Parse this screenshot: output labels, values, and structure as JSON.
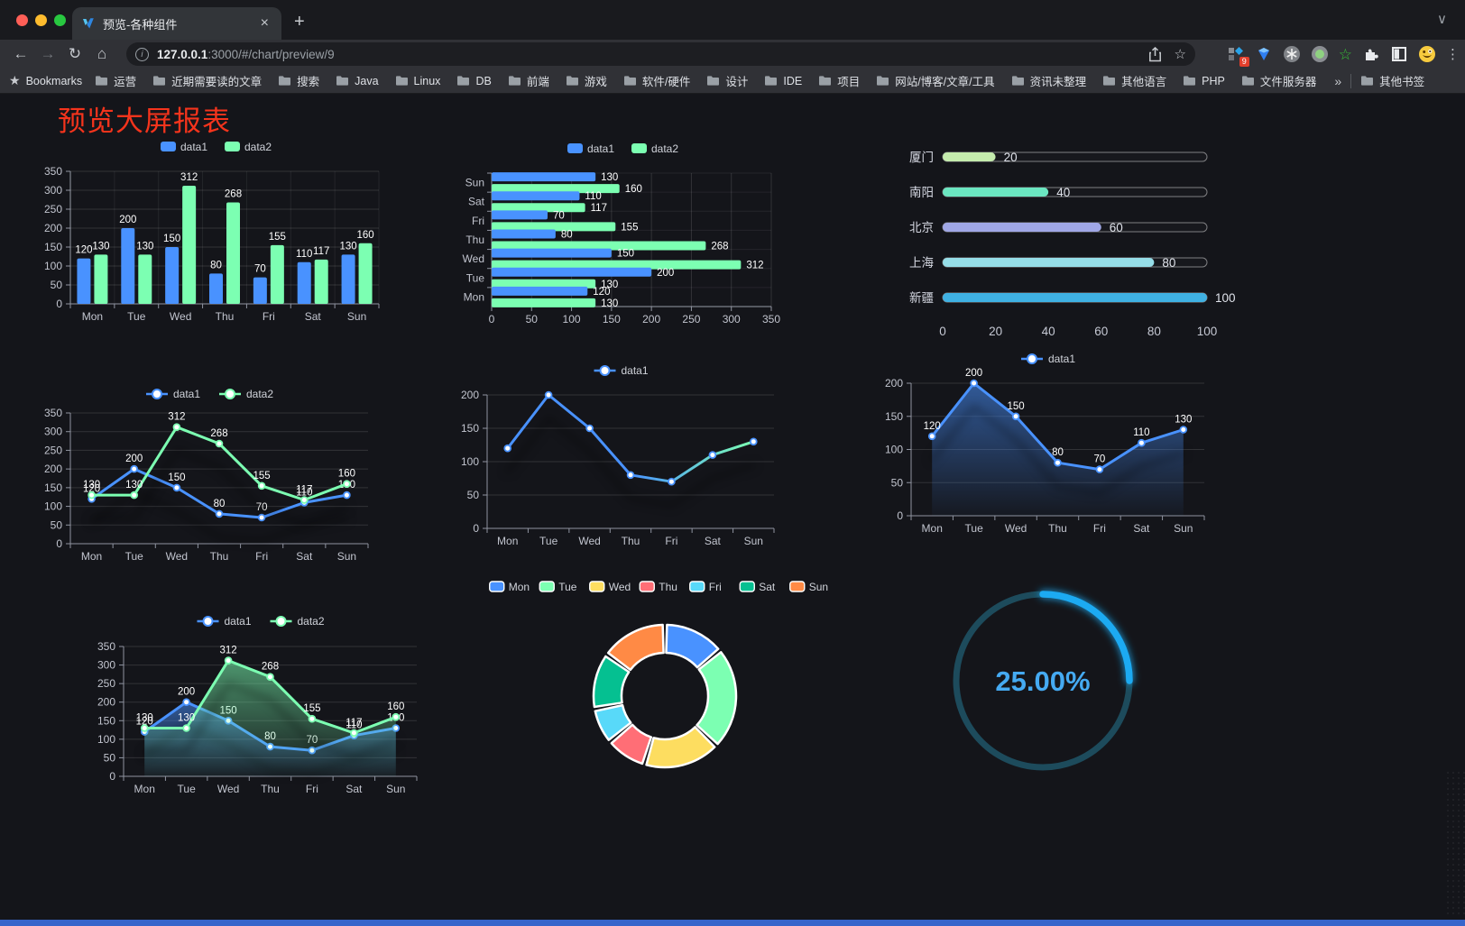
{
  "browser": {
    "tab_title": "预览-各种组件",
    "url_host": "127.0.0.1",
    "url_rest": ":3000/#/chart/preview/9",
    "bookmarks_label": "Bookmarks",
    "bookmark_folders": [
      "运营",
      "近期需要读的文章",
      "搜索",
      "Java",
      "Linux",
      "DB",
      "前端",
      "游戏",
      "软件/硬件",
      "设计",
      "IDE",
      "项目",
      "网站/博客/文章/工具",
      "资讯未整理",
      "其他语言",
      "PHP",
      "文件服务器"
    ],
    "other_bookmarks": "其他书签",
    "extension_badge_count": "9"
  },
  "glyphs": {
    "close": "×",
    "plus": "+",
    "chevron_down": "∨",
    "back": "←",
    "forward": "→",
    "reload": "↻",
    "home": "⌂",
    "info": "i",
    "star_outline": "☆",
    "star_filled": "★",
    "menu_dots": "⋮",
    "overflow": "»"
  },
  "page": {
    "title": "预览大屏报表",
    "title_color": "#f5341c",
    "accent_bar_color": "#3765cb"
  },
  "chart_data": [
    {
      "id": "bar-vertical",
      "type": "bar",
      "categories": [
        "Mon",
        "Tue",
        "Wed",
        "Thu",
        "Fri",
        "Sat",
        "Sun"
      ],
      "series": [
        {
          "name": "data1",
          "color": "#4992ff",
          "values": [
            120,
            200,
            150,
            80,
            70,
            110,
            130
          ]
        },
        {
          "name": "data2",
          "color": "#7cffb2",
          "values": [
            130,
            130,
            312,
            268,
            155,
            117,
            160
          ]
        }
      ],
      "ylim": [
        0,
        350
      ],
      "ytick_step": 50,
      "show_labels": true,
      "legend_position": "top",
      "grid": true
    },
    {
      "id": "bar-horizontal",
      "type": "hbar",
      "categories": [
        "Mon",
        "Tue",
        "Wed",
        "Thu",
        "Fri",
        "Sat",
        "Sun"
      ],
      "display_top_to_bottom": [
        "Sun",
        "Sat",
        "Fri",
        "Thu",
        "Wed",
        "Tue",
        "Mon"
      ],
      "series": [
        {
          "name": "data1",
          "color": "#4992ff",
          "values": [
            120,
            200,
            150,
            80,
            70,
            110,
            130
          ]
        },
        {
          "name": "data2",
          "color": "#7cffb2",
          "values": [
            130,
            130,
            312,
            268,
            155,
            117,
            160
          ]
        }
      ],
      "xlim": [
        0,
        350
      ],
      "xtick_step": 50,
      "show_labels": true,
      "grid": true
    },
    {
      "id": "progress-bars",
      "type": "progress",
      "rows": [
        {
          "label": "厦门",
          "value": 20,
          "color": "#c4ebad"
        },
        {
          "label": "南阳",
          "value": 40,
          "color": "#6be6c1"
        },
        {
          "label": "北京",
          "value": 60,
          "color": "#a0a7e6"
        },
        {
          "label": "上海",
          "value": 80,
          "color": "#96dee8"
        },
        {
          "label": "新疆",
          "value": 100,
          "color": "#3fb1e3"
        }
      ],
      "max": 100,
      "axis_ticks": [
        0,
        20,
        40,
        60,
        80,
        100
      ]
    },
    {
      "id": "line-dual",
      "type": "line",
      "categories": [
        "Mon",
        "Tue",
        "Wed",
        "Thu",
        "Fri",
        "Sat",
        "Sun"
      ],
      "series": [
        {
          "name": "data1",
          "color": "#4992ff",
          "values": [
            120,
            200,
            150,
            80,
            70,
            110,
            130
          ]
        },
        {
          "name": "data2",
          "color": "#7cffb2",
          "values": [
            130,
            130,
            312,
            268,
            155,
            117,
            160
          ]
        }
      ],
      "ylim": [
        0,
        350
      ],
      "ytick_step": 50,
      "show_labels": true
    },
    {
      "id": "line-gradient",
      "type": "line",
      "categories": [
        "Mon",
        "Tue",
        "Wed",
        "Thu",
        "Fri",
        "Sat",
        "Sun"
      ],
      "series": [
        {
          "name": "data1",
          "color": "#4992ff",
          "gradient": [
            "#4992ff",
            "#7cffb2"
          ],
          "values": [
            120,
            200,
            150,
            80,
            70,
            110,
            130
          ]
        }
      ],
      "ylim": [
        0,
        200
      ],
      "ytick_step": 50,
      "show_labels": false
    },
    {
      "id": "area-single",
      "type": "line",
      "categories": [
        "Mon",
        "Tue",
        "Wed",
        "Thu",
        "Fri",
        "Sat",
        "Sun"
      ],
      "series": [
        {
          "name": "data1",
          "color": "#4992ff",
          "area": true,
          "values": [
            120,
            200,
            150,
            80,
            70,
            110,
            130
          ]
        }
      ],
      "ylim": [
        0,
        200
      ],
      "ytick_step": 50,
      "show_labels": true
    },
    {
      "id": "area-dual",
      "type": "line",
      "categories": [
        "Mon",
        "Tue",
        "Wed",
        "Thu",
        "Fri",
        "Sat",
        "Sun"
      ],
      "series": [
        {
          "name": "data1",
          "color": "#4992ff",
          "area": true,
          "values": [
            120,
            200,
            150,
            80,
            70,
            110,
            130
          ]
        },
        {
          "name": "data2",
          "color": "#7cffb2",
          "area": true,
          "values": [
            130,
            130,
            312,
            268,
            155,
            117,
            160
          ]
        }
      ],
      "ylim": [
        0,
        350
      ],
      "ytick_step": 50,
      "show_labels": true
    },
    {
      "id": "donut",
      "type": "pie",
      "items": [
        {
          "label": "Mon",
          "value": 120,
          "color": "#4992ff"
        },
        {
          "label": "Tue",
          "value": 200,
          "color": "#7cffb2"
        },
        {
          "label": "Wed",
          "value": 150,
          "color": "#fddd60"
        },
        {
          "label": "Thu",
          "value": 80,
          "color": "#ff6e76"
        },
        {
          "label": "Fri",
          "value": 70,
          "color": "#58d9f9"
        },
        {
          "label": "Sat",
          "value": 110,
          "color": "#05c091"
        },
        {
          "label": "Sun",
          "value": 130,
          "color": "#ff8a45"
        }
      ],
      "legend_position": "top"
    },
    {
      "id": "gauge",
      "type": "gauge",
      "percent": 25,
      "display": "25.00%",
      "arc_color": "#1faaf2",
      "track_color": "#1d4b5c",
      "text_color": "#45aaf2"
    }
  ]
}
